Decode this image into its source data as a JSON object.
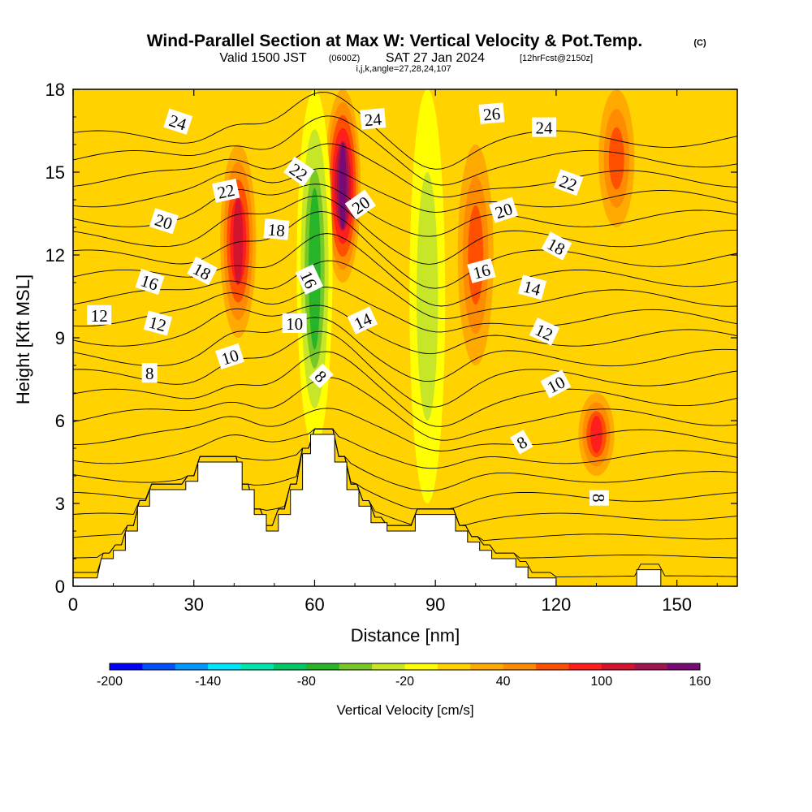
{
  "titles": {
    "main": "Wind-Parallel Section at Max W: Vertical Velocity & Pot.Temp.",
    "main_tag": "(C)",
    "valid_prefix": "Valid 1500 JST",
    "valid_utc": "(0600Z)",
    "valid_date": "SAT 27 Jan 2024",
    "valid_fcst": "[12hrFcst@2150z]",
    "ijk": "i,j,k,angle=27,28,24,107"
  },
  "chart_data": {
    "type": "contour",
    "xlabel": "Distance [nm]",
    "ylabel": "Height [Kft MSL]",
    "xlim": [
      0,
      165
    ],
    "ylim": [
      0,
      18
    ],
    "x_ticks": [
      0,
      30,
      60,
      90,
      120,
      150
    ],
    "y_ticks": [
      0,
      3,
      6,
      9,
      12,
      15,
      18
    ],
    "colorbar": {
      "label": "Vertical Velocity [cm/s]",
      "min": -200,
      "max": 160,
      "step": 20,
      "tick_values": [
        -200,
        -140,
        -80,
        -20,
        40,
        100,
        160
      ],
      "colors": [
        "#0000ff",
        "#0050ff",
        "#0096ff",
        "#00e6ff",
        "#00e6aa",
        "#00c864",
        "#28b428",
        "#78c828",
        "#c8e628",
        "#ffff00",
        "#ffd200",
        "#ffaa00",
        "#ff8c00",
        "#ff5000",
        "#ff1e1e",
        "#d2142d",
        "#a01450",
        "#780a78"
      ]
    },
    "vertical_velocity_features": [
      {
        "x": 41,
        "y_range": [
          9,
          16
        ],
        "w_cms": 100,
        "sign": "up"
      },
      {
        "x": 67,
        "y_range": [
          11,
          18
        ],
        "w_cms": 140,
        "sign": "up"
      },
      {
        "x": 60,
        "y_range": [
          5,
          18
        ],
        "w_cms": -80,
        "sign": "down"
      },
      {
        "x": 100,
        "y_range": [
          8,
          16
        ],
        "w_cms": 60,
        "sign": "up"
      },
      {
        "x": 130,
        "y_range": [
          4,
          7
        ],
        "w_cms": 80,
        "sign": "up"
      },
      {
        "x": 135,
        "y_range": [
          13,
          18
        ],
        "w_cms": 60,
        "sign": "up"
      },
      {
        "x": 88,
        "y_range": [
          3,
          18
        ],
        "w_cms": -40,
        "sign": "down"
      }
    ],
    "terrain_nm_kft": [
      [
        0,
        0.3
      ],
      [
        6,
        0.3
      ],
      [
        7,
        1
      ],
      [
        10,
        1
      ],
      [
        10,
        1.3
      ],
      [
        13,
        1.3
      ],
      [
        13,
        2
      ],
      [
        16,
        2
      ],
      [
        16,
        2.9
      ],
      [
        19,
        2.9
      ],
      [
        19,
        3.5
      ],
      [
        28,
        3.5
      ],
      [
        28,
        3.8
      ],
      [
        31,
        3.8
      ],
      [
        31,
        4.5
      ],
      [
        42,
        4.5
      ],
      [
        42,
        3.5
      ],
      [
        45,
        3.5
      ],
      [
        45,
        2.6
      ],
      [
        48,
        2.6
      ],
      [
        48,
        2
      ],
      [
        51,
        2
      ],
      [
        51,
        2.6
      ],
      [
        54,
        2.6
      ],
      [
        54,
        3.5
      ],
      [
        57,
        3.5
      ],
      [
        57,
        4.8
      ],
      [
        59,
        4.8
      ],
      [
        59,
        5.5
      ],
      [
        65,
        5.5
      ],
      [
        65,
        4.5
      ],
      [
        68,
        4.5
      ],
      [
        68,
        3.5
      ],
      [
        71,
        3.5
      ],
      [
        71,
        2.9
      ],
      [
        74,
        2.9
      ],
      [
        74,
        2.3
      ],
      [
        78,
        2.3
      ],
      [
        78,
        2
      ],
      [
        85,
        2
      ],
      [
        85,
        2.6
      ],
      [
        95,
        2.6
      ],
      [
        95,
        2
      ],
      [
        98,
        2
      ],
      [
        98,
        1.6
      ],
      [
        101,
        1.6
      ],
      [
        101,
        1.3
      ],
      [
        104,
        1.3
      ],
      [
        104,
        1
      ],
      [
        110,
        1
      ],
      [
        110,
        0.7
      ],
      [
        113,
        0.7
      ],
      [
        113,
        0.3
      ],
      [
        116,
        0.3
      ],
      [
        116,
        0.3
      ],
      [
        120,
        0.3
      ],
      [
        120,
        0
      ],
      [
        140,
        0
      ],
      [
        140,
        0.6
      ],
      [
        146,
        0.6
      ],
      [
        146,
        0
      ],
      [
        165,
        0
      ]
    ],
    "theta_contour_labels": [
      {
        "text": "24",
        "x": 26,
        "y": 16.8,
        "angle": 18
      },
      {
        "text": "22",
        "x": 38,
        "y": 14.3,
        "angle": -12
      },
      {
        "text": "20",
        "x": 22.5,
        "y": 13.2,
        "angle": 18
      },
      {
        "text": "18",
        "x": 32,
        "y": 11.4,
        "angle": 28
      },
      {
        "text": "16",
        "x": 19,
        "y": 11,
        "angle": 18
      },
      {
        "text": "12",
        "x": 6.5,
        "y": 9.8,
        "angle": 0
      },
      {
        "text": "12",
        "x": 21,
        "y": 9.5,
        "angle": 15
      },
      {
        "text": "8",
        "x": 19,
        "y": 7.7,
        "angle": 0
      },
      {
        "text": "10",
        "x": 39,
        "y": 8.3,
        "angle": -18
      },
      {
        "text": "10",
        "x": 55,
        "y": 9.5,
        "angle": 0
      },
      {
        "text": "18",
        "x": 50.5,
        "y": 12.9,
        "angle": 5
      },
      {
        "text": "22",
        "x": 56,
        "y": 15,
        "angle": 35
      },
      {
        "text": "16",
        "x": 58.5,
        "y": 11.1,
        "angle": 65
      },
      {
        "text": "8",
        "x": 61.5,
        "y": 7.6,
        "angle": 45
      },
      {
        "text": "24",
        "x": 74.5,
        "y": 16.9,
        "angle": -5
      },
      {
        "text": "20",
        "x": 71.5,
        "y": 13.8,
        "angle": -35
      },
      {
        "text": "14",
        "x": 72,
        "y": 9.6,
        "angle": -25
      },
      {
        "text": "26",
        "x": 104,
        "y": 17.1,
        "angle": -5
      },
      {
        "text": "24",
        "x": 117,
        "y": 16.6,
        "angle": 0
      },
      {
        "text": "22",
        "x": 123,
        "y": 14.6,
        "angle": 20
      },
      {
        "text": "20",
        "x": 107,
        "y": 13.6,
        "angle": -18
      },
      {
        "text": "18",
        "x": 120,
        "y": 12.3,
        "angle": 28
      },
      {
        "text": "16",
        "x": 101.5,
        "y": 11.4,
        "angle": -15
      },
      {
        "text": "14",
        "x": 114,
        "y": 10.8,
        "angle": 15
      },
      {
        "text": "12",
        "x": 117,
        "y": 9.2,
        "angle": 25
      },
      {
        "text": "10",
        "x": 120,
        "y": 7.3,
        "angle": -28
      },
      {
        "text": "8",
        "x": 111.5,
        "y": 5.2,
        "angle": -30
      },
      {
        "text": "8",
        "x": 130.5,
        "y": 3.2,
        "angle": 90
      }
    ]
  }
}
